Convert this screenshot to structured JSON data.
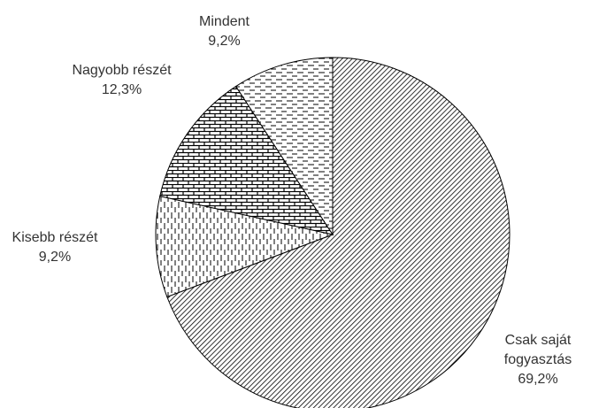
{
  "chart_data": {
    "type": "pie",
    "categories": [
      "Csak saját fogyasztás",
      "Kisebb részét",
      "Nagyobb részét",
      "Mindent"
    ],
    "values": [
      69.2,
      9.2,
      12.3,
      9.2
    ],
    "value_labels": [
      "69,2%",
      "9,2%",
      "12,3%",
      "9,2%"
    ]
  }
}
